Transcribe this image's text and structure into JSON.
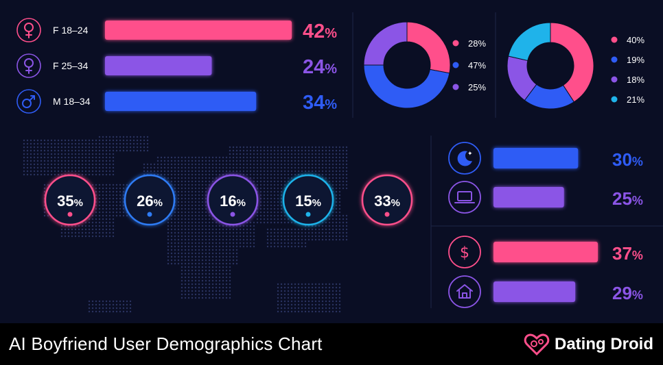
{
  "colors": {
    "pink": "#ff4f8b",
    "purple": "#8b55e6",
    "blue": "#2f5cf5",
    "cyan": "#1fb3ea",
    "background": "#0a0e24"
  },
  "chart_data": [
    {
      "type": "bar",
      "orientation": "horizontal",
      "categories": [
        "F 18–24",
        "F 25–34",
        "M 18–34"
      ],
      "values": [
        42,
        24,
        34
      ],
      "icons": [
        "female-icon",
        "female-icon",
        "male-icon"
      ],
      "colors": [
        "#ff4f8b",
        "#8b55e6",
        "#2f5cf5"
      ],
      "value_labels": [
        "42%",
        "24%",
        "34%"
      ]
    },
    {
      "type": "pie",
      "style": "donut",
      "values": [
        28,
        47,
        25
      ],
      "labels": [
        "28%",
        "47%",
        "25%"
      ],
      "colors": [
        "#ff4f8b",
        "#2f5cf5",
        "#8b55e6"
      ]
    },
    {
      "type": "pie",
      "style": "donut",
      "values": [
        40,
        19,
        18,
        21
      ],
      "labels": [
        "40%",
        "19%",
        "18%",
        "21%"
      ],
      "colors": [
        "#ff4f8b",
        "#2f5cf5",
        "#8b55e6",
        "#1fb3ea"
      ]
    },
    {
      "type": "scatter",
      "style": "world-map-rings",
      "values": [
        35,
        26,
        16,
        15,
        33
      ],
      "labels": [
        "35%",
        "26%",
        "16%",
        "15%",
        "33%"
      ],
      "colors": [
        "#ff4f8b",
        "#2f7cf5",
        "#8b55e6",
        "#1fb3ea",
        "#ff4f8b"
      ]
    },
    {
      "type": "bar",
      "orientation": "horizontal",
      "values": [
        30,
        25
      ],
      "icons": [
        "moon-stars-icon",
        "laptop-icon"
      ],
      "colors": [
        "#2f5cf5",
        "#8b55e6"
      ],
      "value_labels": [
        "30%",
        "25%"
      ]
    },
    {
      "type": "bar",
      "orientation": "horizontal",
      "values": [
        37,
        29
      ],
      "icons": [
        "dollar-icon",
        "home-icon"
      ],
      "colors": [
        "#ff4f8b",
        "#8b55e6"
      ],
      "value_labels": [
        "37%",
        "29%"
      ]
    }
  ],
  "footer": {
    "title": "AI Boyfriend User Demographics Chart",
    "brand": "Dating Droid",
    "brand_icon": "heart-gear-icon"
  }
}
